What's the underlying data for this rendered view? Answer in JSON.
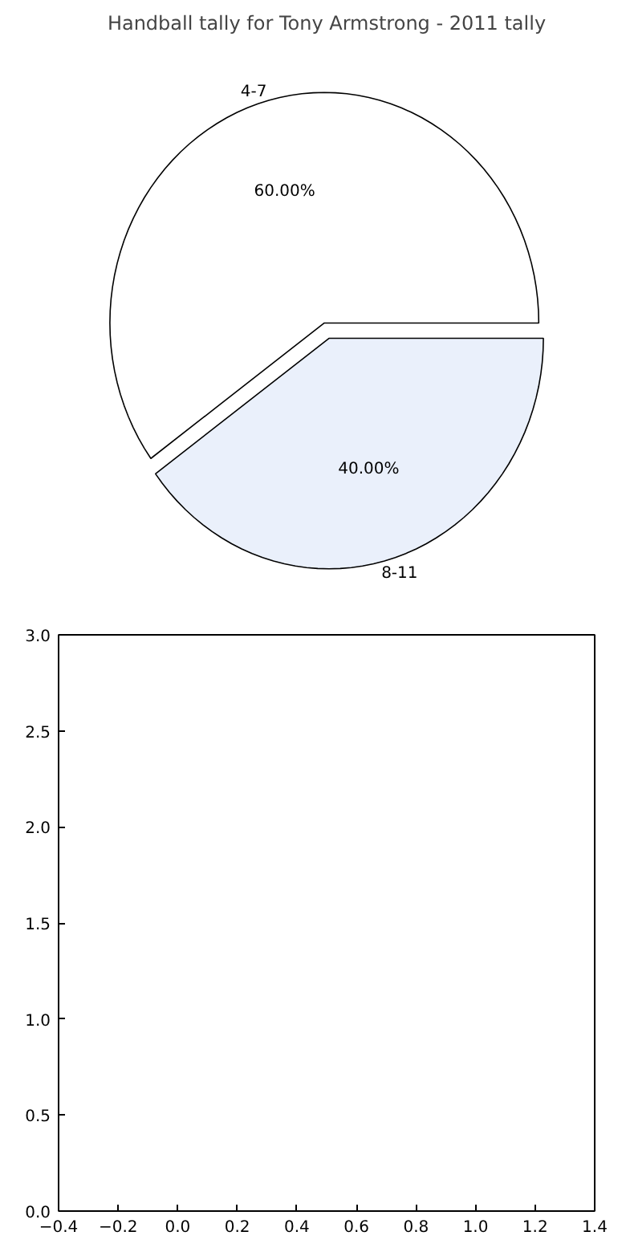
{
  "chart_data": [
    {
      "type": "pie",
      "title": "Handball tally for Tony Armstrong - 2011 tally",
      "categories": [
        "4-7",
        "8-11"
      ],
      "values": [
        60,
        40
      ],
      "colors": [
        "#ffffff",
        "#eaf0fb"
      ],
      "value_labels": [
        "60.00%",
        "40.00%"
      ]
    },
    {
      "type": "scatter",
      "xlim": [
        -0.4,
        1.4
      ],
      "ylim": [
        0,
        3
      ],
      "xticks": [
        {
          "value": -0.4,
          "label": "−0.4"
        },
        {
          "value": -0.2,
          "label": "−0.2"
        },
        {
          "value": 0.0,
          "label": "0.0"
        },
        {
          "value": 0.2,
          "label": "0.2"
        },
        {
          "value": 0.4,
          "label": "0.4"
        },
        {
          "value": 0.6,
          "label": "0.6"
        },
        {
          "value": 0.8,
          "label": "0.8"
        },
        {
          "value": 1.0,
          "label": "1.0"
        },
        {
          "value": 1.2,
          "label": "1.2"
        },
        {
          "value": 1.4,
          "label": "1.4"
        }
      ],
      "yticks": [
        {
          "value": 0.0,
          "label": "0.0"
        },
        {
          "value": 0.5,
          "label": "0.5"
        },
        {
          "value": 1.0,
          "label": "1.0"
        },
        {
          "value": 1.5,
          "label": "1.5"
        },
        {
          "value": 2.0,
          "label": "2.0"
        },
        {
          "value": 2.5,
          "label": "2.5"
        },
        {
          "value": 3.0,
          "label": "3.0"
        }
      ]
    }
  ]
}
